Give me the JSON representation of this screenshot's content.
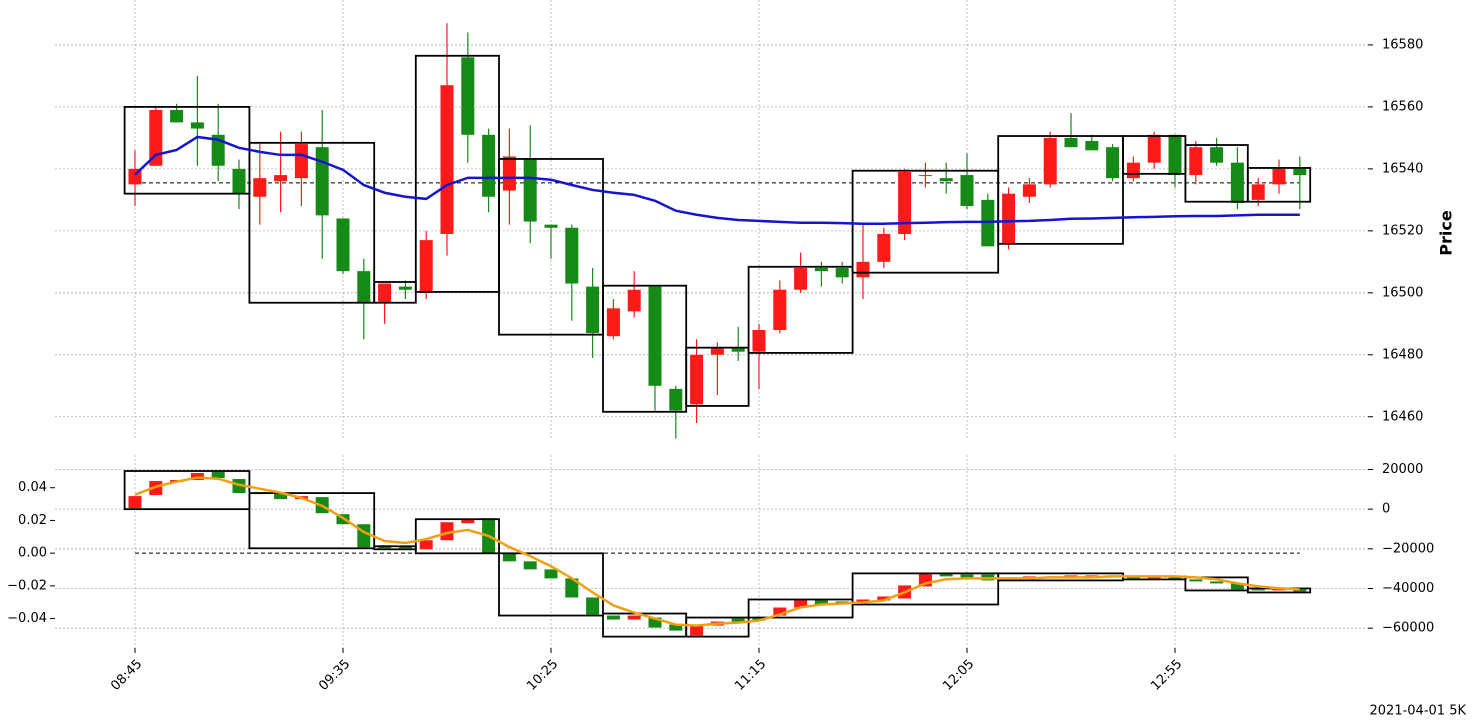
{
  "chart_data": [
    {
      "type": "candlestick",
      "ylabel": "Price",
      "yaxis_side": "right",
      "grid": true,
      "categories": [
        "08:45",
        null,
        null,
        null,
        null,
        null,
        null,
        null,
        null,
        null,
        "09:35",
        null,
        null,
        null,
        null,
        null,
        null,
        null,
        null,
        null,
        "10:25",
        null,
        null,
        null,
        null,
        null,
        null,
        null,
        null,
        null,
        "11:15",
        null,
        null,
        null,
        null,
        null,
        null,
        null,
        null,
        null,
        "12:05",
        null,
        null,
        null,
        null,
        null,
        null,
        null,
        null,
        null,
        "12:55",
        null,
        null,
        null,
        null,
        null,
        null
      ],
      "open": [
        16535,
        16541,
        16559,
        16555,
        16551,
        16540,
        16531,
        16536,
        16537,
        16547,
        16524,
        16507,
        16497,
        16502,
        16500,
        16519,
        16576,
        16551,
        16533,
        16543,
        16522,
        16521,
        16502,
        16486,
        16494,
        16502,
        16469,
        16464,
        16480,
        16482,
        16481,
        16488,
        16501,
        16508,
        16508,
        16505,
        16510,
        16519,
        16538,
        16537,
        16538,
        16530,
        16516,
        16531,
        16535,
        16550,
        16549,
        16547,
        16537,
        16542,
        16551,
        16538,
        16547,
        16542,
        16530,
        16535,
        16540
      ],
      "high": [
        16546,
        16560,
        16561,
        16570,
        16561,
        16543,
        16548,
        16552,
        16552,
        16559,
        16524,
        16511,
        16503,
        16504,
        16520,
        16587,
        16584,
        16553,
        16553,
        16554,
        16522,
        16522,
        16508,
        16498,
        16507,
        16502,
        16470,
        16485,
        16484,
        16489,
        16490,
        16504,
        16513,
        16510,
        16510,
        16522,
        16521,
        16540,
        16542,
        16542,
        16545,
        16532,
        16534,
        16537,
        16552,
        16558,
        16551,
        16548,
        16544,
        16552,
        16551,
        16549,
        16550,
        16547,
        16537,
        16543,
        16544
      ],
      "low": [
        16528,
        16541,
        16555,
        16541,
        16536,
        16527,
        16522,
        16526,
        16528,
        16511,
        16506,
        16485,
        16490,
        16498,
        16498,
        16512,
        16542,
        16526,
        16522,
        16516,
        16511,
        16491,
        16479,
        16485,
        16492,
        16462,
        16453,
        16458,
        16467,
        16478,
        16469,
        16487,
        16500,
        16502,
        16503,
        16498,
        16508,
        16517,
        16534,
        16532,
        16527,
        16515,
        16514,
        16529,
        16534,
        16547,
        16546,
        16536,
        16536,
        16540,
        16534,
        16535,
        16541,
        16527,
        16528,
        16532,
        16527
      ],
      "close": [
        16540,
        16559,
        16555,
        16553,
        16541,
        16532,
        16537,
        16538,
        16548,
        16525,
        16507,
        16497,
        16503,
        16501,
        16517,
        16567,
        16551,
        16531,
        16544,
        16523,
        16521,
        16503,
        16487,
        16495,
        16501,
        16470,
        16462,
        16480,
        16482,
        16481,
        16488,
        16501,
        16508,
        16507,
        16505,
        16510,
        16519,
        16539,
        16538,
        16536,
        16528,
        16515,
        16532,
        16535,
        16550,
        16547,
        16546,
        16537,
        16542,
        16551,
        16538,
        16547,
        16542,
        16529,
        16535,
        16540,
        16538
      ],
      "up_color": "#ff1a1a",
      "down_color": "#168a16",
      "lines": [
        {
          "color": "#1515d0",
          "values": [
            16538.1,
            16544.5,
            16546.1,
            16550.3,
            16549.4,
            16546.8,
            16545.5,
            16544.5,
            16544.5,
            16542.3,
            16539.7,
            16534.8,
            16532.3,
            16531,
            16530.3,
            16534.8,
            16537.1,
            16537.1,
            16537.1,
            16537.1,
            16536.5,
            16534.8,
            16533.2,
            16532.3,
            16531.6,
            16529.7,
            16526.5,
            16525.2,
            16524.2,
            16523.5,
            16523.2,
            16522.9,
            16522.6,
            16522.6,
            16522.5,
            16522.3,
            16522.3,
            16522.5,
            16522.6,
            16522.8,
            16522.9,
            16522.9,
            16523.1,
            16523.2,
            16523.5,
            16523.9,
            16524,
            16524.2,
            16524.4,
            16524.5,
            16524.7,
            16524.8,
            16524.8,
            16525,
            16525.2,
            16525.2,
            16525.2
          ]
        }
      ],
      "hline": 16535.5,
      "boxes": [
        {
          "from": 0,
          "to": 5,
          "top": 16560,
          "bottom": 16532
        },
        {
          "from": 6,
          "to": 11,
          "top": 16548.4,
          "bottom": 16496.8
        },
        {
          "from": 12,
          "to": 13,
          "top": 16503.5,
          "bottom": 16496.8
        },
        {
          "from": 14,
          "to": 17,
          "top": 16576.5,
          "bottom": 16500.3
        },
        {
          "from": 18,
          "to": 22,
          "top": 16543.2,
          "bottom": 16486.5
        },
        {
          "from": 23,
          "to": 26,
          "top": 16502.3,
          "bottom": 16461.6
        },
        {
          "from": 27,
          "to": 29,
          "top": 16482.3,
          "bottom": 16463.5
        },
        {
          "from": 30,
          "to": 34,
          "top": 16508.4,
          "bottom": 16480.6
        },
        {
          "from": 35,
          "to": 41,
          "top": 16539.4,
          "bottom": 16506.5
        },
        {
          "from": 42,
          "to": 47,
          "top": 16550.6,
          "bottom": 16515.8
        },
        {
          "from": 48,
          "to": 50,
          "top": 16550.6,
          "bottom": 16538.4
        },
        {
          "from": 51,
          "to": 53,
          "top": 16547.7,
          "bottom": 16529.4
        },
        {
          "from": 54,
          "to": 56,
          "top": 16540.3,
          "bottom": 16529.4
        }
      ],
      "ylim": [
        16452.5,
        16594.5
      ],
      "yticks": [
        16460,
        16480,
        16500,
        16520,
        16540,
        16560,
        16580
      ]
    },
    {
      "type": "candlestick",
      "candle_axis": "y2",
      "box_axis": "y2",
      "grid": true,
      "open": [
        506,
        7084,
        13662,
        14674,
        18722,
        15180,
        8602,
        8096,
        5060,
        6072,
        -2530,
        -7590,
        -18216,
        -18722,
        -20240,
        -15686,
        -7084,
        -4554,
        -22264,
        -26312,
        -30360,
        -34914,
        -44528,
        -53636,
        -55660,
        -54648,
        -58190,
        -63756,
        -58696,
        -55154,
        -55154,
        -53636,
        -49588,
        -45540,
        -46552,
        -47058,
        -46046,
        -45034,
        -38962,
        -32384,
        -32890,
        -32890,
        -34914,
        -34408,
        -33902,
        -34408,
        -33902,
        -33396,
        -34408,
        -34914,
        -34408,
        -35420,
        -36432,
        -37444,
        -40480,
        -40986,
        -40480
      ],
      "close": [
        6578,
        14168,
        14674,
        18216,
        15686,
        8096,
        7590,
        5060,
        6578,
        -2024,
        -7590,
        -19228,
        -19734,
        -19734,
        -15686,
        -6578,
        -5060,
        -22264,
        -26312,
        -30360,
        -34914,
        -44528,
        -53130,
        -55660,
        -53636,
        -59708,
        -61226,
        -58190,
        -56672,
        -56672,
        -56166,
        -49588,
        -45540,
        -48070,
        -47564,
        -45540,
        -44022,
        -38456,
        -32384,
        -33902,
        -34408,
        -35926,
        -34408,
        -33902,
        -34408,
        -33396,
        -33396,
        -34408,
        -34914,
        -34408,
        -35420,
        -36432,
        -37444,
        -40480,
        -40986,
        -40480,
        -41492
      ],
      "up_color": "#ff1a1a",
      "down_color": "#168a16",
      "lines": [
        {
          "color": "#f0a010",
          "values": [
            0.0357,
            0.0406,
            0.0437,
            0.0462,
            0.0455,
            0.0418,
            0.0394,
            0.0369,
            0.0338,
            0.0289,
            0.0215,
            0.0129,
            0.0074,
            0.0062,
            0.0086,
            0.0123,
            0.0142,
            0.0105,
            0.0037,
            -0.0018,
            -0.008,
            -0.0154,
            -0.024,
            -0.032,
            -0.0363,
            -0.04,
            -0.0437,
            -0.0443,
            -0.0431,
            -0.0425,
            -0.0412,
            -0.0375,
            -0.0332,
            -0.0314,
            -0.0308,
            -0.0302,
            -0.0289,
            -0.024,
            -0.0185,
            -0.016,
            -0.0154,
            -0.0154,
            -0.0154,
            -0.0154,
            -0.0148,
            -0.0148,
            -0.0148,
            -0.0142,
            -0.0142,
            -0.0142,
            -0.0142,
            -0.0148,
            -0.016,
            -0.0185,
            -0.0203,
            -0.0215,
            -0.0222
          ]
        }
      ],
      "hline": 0,
      "boxes": [
        {
          "from": 0,
          "to": 5,
          "top": 19228,
          "bottom": 0
        },
        {
          "from": 6,
          "to": 11,
          "top": 8096,
          "bottom": -19734
        },
        {
          "from": 12,
          "to": 13,
          "top": -18722,
          "bottom": -20240
        },
        {
          "from": 14,
          "to": 17,
          "top": -5060,
          "bottom": -22264
        },
        {
          "from": 18,
          "to": 22,
          "top": -22264,
          "bottom": -53636
        },
        {
          "from": 23,
          "to": 26,
          "top": -52624,
          "bottom": -64262
        },
        {
          "from": 27,
          "to": 29,
          "top": -54648,
          "bottom": -64262
        },
        {
          "from": 30,
          "to": 34,
          "top": -45540,
          "bottom": -54648
        },
        {
          "from": 35,
          "to": 41,
          "top": -32384,
          "bottom": -48070
        },
        {
          "from": 42,
          "to": 47,
          "top": -32384,
          "bottom": -35926
        },
        {
          "from": 48,
          "to": 50,
          "top": -33902,
          "bottom": -35420
        },
        {
          "from": 51,
          "to": 53,
          "top": -34408,
          "bottom": -40986
        },
        {
          "from": 54,
          "to": 56,
          "top": -39974,
          "bottom": -41998
        }
      ],
      "ylim": [
        -0.058,
        0.06
      ],
      "yticks": [
        {
          "value": -0.04,
          "label": "−0.04"
        },
        {
          "value": -0.02,
          "label": "−0.02"
        },
        {
          "value": 0,
          "label": "0.00"
        },
        0.02,
        0.04
      ],
      "y2lim": [
        -70000,
        27300
      ],
      "y2ticks": [
        {
          "value": -60000,
          "label": "−60000"
        },
        {
          "value": -40000,
          "label": "−40000"
        },
        {
          "value": -20000,
          "label": "−20000"
        },
        0,
        20000
      ]
    }
  ],
  "footer": "2021-04-01 5K"
}
